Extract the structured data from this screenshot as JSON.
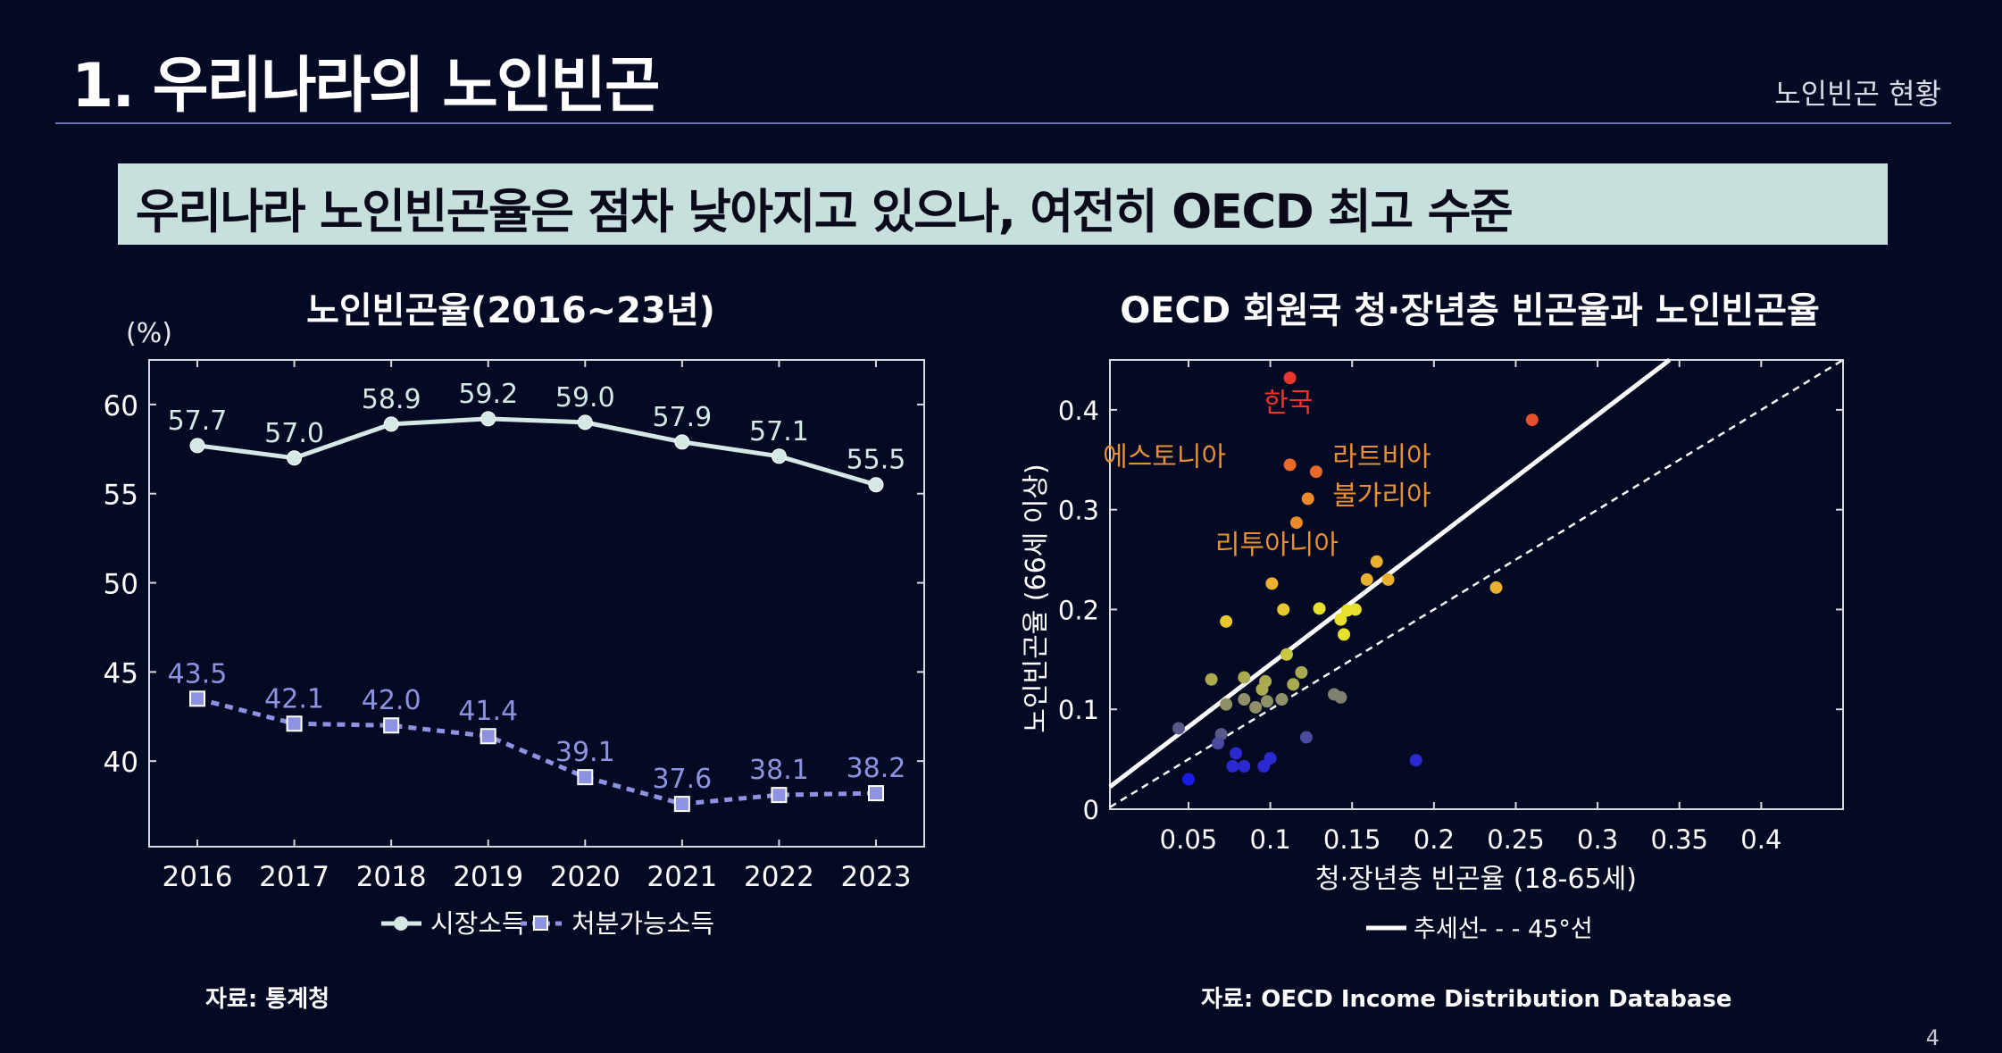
{
  "header": {
    "title": "1. 우리나라의 노인빈곤",
    "section": "노인빈곤 현황",
    "headline": "우리나라 노인빈곤율은 점차 낮아지고 있으나, 여전히 OECD 최고 수준"
  },
  "left_source": "자료: 통계청",
  "right_source": "자료: OECD Income Distribution Database",
  "page_number": "4",
  "colors": {
    "background": "#050a24",
    "headline_box": "#c7dfdd",
    "market_income": "#d4e8e6",
    "disposable_income": "#8d93e0",
    "korea": "#e8382d",
    "trend": "#ffffff"
  },
  "chart_data": [
    {
      "type": "line",
      "title": "노인빈곤율(2016~23년)",
      "ylabel": "(%)",
      "xlabel": "",
      "categories": [
        "2016",
        "2017",
        "2018",
        "2019",
        "2020",
        "2021",
        "2022",
        "2023"
      ],
      "y_ticks": [
        "60",
        "55",
        "50",
        "45",
        "40"
      ],
      "ylim": [
        35.2,
        62.5
      ],
      "grid": false,
      "legend_position": "bottom",
      "series": [
        {
          "name": "시장소득",
          "style": "solid-circle",
          "values": [
            57.7,
            57.0,
            58.9,
            59.2,
            59.0,
            57.9,
            57.1,
            55.5
          ],
          "labels": [
            "57.7",
            "57.0",
            "58.9",
            "59.2",
            "59.0",
            "57.9",
            "57.1",
            "55.5"
          ]
        },
        {
          "name": "처분가능소득",
          "style": "dashed-square",
          "values": [
            43.5,
            42.1,
            42.0,
            41.4,
            39.1,
            37.6,
            38.1,
            38.2
          ],
          "labels": [
            "43.5",
            "42.1",
            "42.0",
            "41.4",
            "39.1",
            "37.6",
            "38.1",
            "38.2"
          ]
        }
      ]
    },
    {
      "type": "scatter",
      "title": "OECD 회원국 청·장년층 빈곤율과 노인빈곤율",
      "xlabel": "청·장년층 빈곤율 (18-65세)",
      "ylabel": "노인빈곤율 (66세 이상)",
      "xlim": [
        0.002,
        0.45
      ],
      "ylim": [
        0,
        0.45
      ],
      "x_ticks": [
        "0.05",
        "0.1",
        "0.15",
        "0.2",
        "0.25",
        "0.3",
        "0.35",
        "0.4"
      ],
      "y_ticks": [
        "0",
        "0.1",
        "0.2",
        "0.3",
        "0.4"
      ],
      "legend": [
        {
          "name": "추세선",
          "style": "solid"
        },
        {
          "name": "- - -  45°선",
          "style": "dashed"
        }
      ],
      "legend_position": "bottom",
      "trend_line": {
        "intercept": 0.02,
        "slope": 1.25
      },
      "reference_line": {
        "intercept": 0,
        "slope": 1
      },
      "annotations": [
        {
          "text": "한국",
          "x": 0.111,
          "y": 0.398,
          "color": "#e8382d"
        },
        {
          "text": "에스토니아",
          "x": 0.073,
          "y": 0.344,
          "color": "#e89030"
        },
        {
          "text": "라트비아",
          "x": 0.138,
          "y": 0.344,
          "color": "#e89030"
        },
        {
          "text": "불가리아",
          "x": 0.138,
          "y": 0.305,
          "color": "#e89030"
        },
        {
          "text": "리투아니아",
          "x": 0.104,
          "y": 0.256,
          "color": "#e89030"
        }
      ],
      "points": [
        {
          "x": 0.112,
          "y": 0.432,
          "color": "#e8382d"
        },
        {
          "x": 0.26,
          "y": 0.39,
          "color": "#e8502d"
        },
        {
          "x": 0.112,
          "y": 0.345,
          "color": "#ea6a2a"
        },
        {
          "x": 0.128,
          "y": 0.338,
          "color": "#ea6a2a"
        },
        {
          "x": 0.123,
          "y": 0.311,
          "color": "#ee8a2e"
        },
        {
          "x": 0.116,
          "y": 0.287,
          "color": "#ee8a2e"
        },
        {
          "x": 0.101,
          "y": 0.226,
          "color": "#e8b02e"
        },
        {
          "x": 0.165,
          "y": 0.248,
          "color": "#e8b02e"
        },
        {
          "x": 0.159,
          "y": 0.23,
          "color": "#e8b02e"
        },
        {
          "x": 0.172,
          "y": 0.23,
          "color": "#e8b02e"
        },
        {
          "x": 0.238,
          "y": 0.222,
          "color": "#e8b02e"
        },
        {
          "x": 0.073,
          "y": 0.188,
          "color": "#e8c82e"
        },
        {
          "x": 0.108,
          "y": 0.2,
          "color": "#e8c82e"
        },
        {
          "x": 0.13,
          "y": 0.201,
          "color": "#e8e02e"
        },
        {
          "x": 0.147,
          "y": 0.199,
          "color": "#e8e02e"
        },
        {
          "x": 0.152,
          "y": 0.2,
          "color": "#e8e02e"
        },
        {
          "x": 0.143,
          "y": 0.19,
          "color": "#e8e02e"
        },
        {
          "x": 0.145,
          "y": 0.175,
          "color": "#e8e02e"
        },
        {
          "x": 0.11,
          "y": 0.155,
          "color": "#c8c840"
        },
        {
          "x": 0.064,
          "y": 0.13,
          "color": "#aaaa50"
        },
        {
          "x": 0.084,
          "y": 0.132,
          "color": "#aaaa50"
        },
        {
          "x": 0.097,
          "y": 0.128,
          "color": "#aaaa50"
        },
        {
          "x": 0.095,
          "y": 0.12,
          "color": "#aaaa50"
        },
        {
          "x": 0.119,
          "y": 0.137,
          "color": "#aaaa50"
        },
        {
          "x": 0.114,
          "y": 0.125,
          "color": "#aaaa50"
        },
        {
          "x": 0.073,
          "y": 0.105,
          "color": "#909068"
        },
        {
          "x": 0.084,
          "y": 0.11,
          "color": "#909068"
        },
        {
          "x": 0.091,
          "y": 0.102,
          "color": "#909068"
        },
        {
          "x": 0.098,
          "y": 0.108,
          "color": "#909068"
        },
        {
          "x": 0.107,
          "y": 0.11,
          "color": "#909068"
        },
        {
          "x": 0.139,
          "y": 0.115,
          "color": "#808070"
        },
        {
          "x": 0.143,
          "y": 0.112,
          "color": "#808070"
        },
        {
          "x": 0.044,
          "y": 0.081,
          "color": "#5a5a8a"
        },
        {
          "x": 0.07,
          "y": 0.075,
          "color": "#5a5a8a"
        },
        {
          "x": 0.068,
          "y": 0.066,
          "color": "#4a4aa0"
        },
        {
          "x": 0.122,
          "y": 0.072,
          "color": "#4a4aa0"
        },
        {
          "x": 0.079,
          "y": 0.056,
          "color": "#2a2ad0"
        },
        {
          "x": 0.077,
          "y": 0.043,
          "color": "#2a2ad0"
        },
        {
          "x": 0.084,
          "y": 0.043,
          "color": "#2a2ad0"
        },
        {
          "x": 0.096,
          "y": 0.043,
          "color": "#2a2ad0"
        },
        {
          "x": 0.1,
          "y": 0.051,
          "color": "#2a2ad0"
        },
        {
          "x": 0.189,
          "y": 0.049,
          "color": "#2a2ad0"
        },
        {
          "x": 0.05,
          "y": 0.03,
          "color": "#1a1ae8"
        }
      ]
    }
  ]
}
